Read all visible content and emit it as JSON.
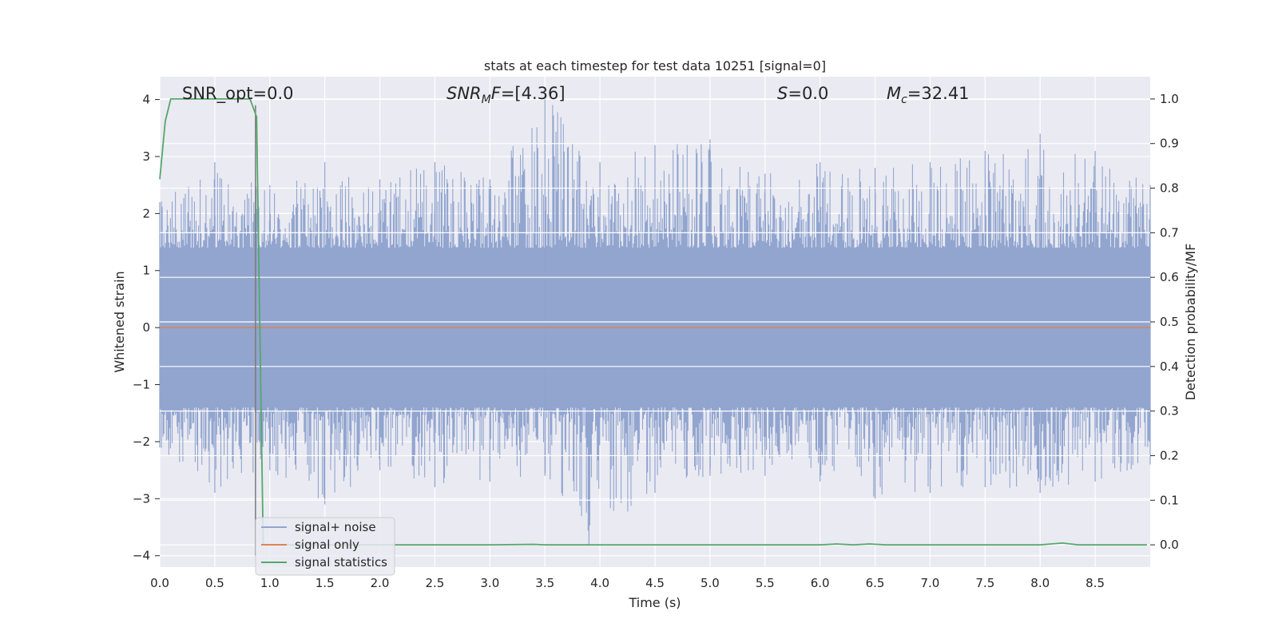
{
  "chart_data": {
    "type": "line",
    "title": "stats at each timestep for test data 10251 [signal=0]",
    "xlabel": "Time (s)",
    "ylabel": "Whitened strain",
    "ylabel_right": "Detection probability/MF",
    "xlim": [
      0.0,
      9.0
    ],
    "ylim": [
      -4.2,
      4.4
    ],
    "ylim_right": [
      -0.05,
      1.05
    ],
    "x_ticks": [
      "0.0",
      "0.5",
      "1.0",
      "1.5",
      "2.0",
      "2.5",
      "3.0",
      "3.5",
      "4.0",
      "4.5",
      "5.0",
      "5.5",
      "6.0",
      "6.5",
      "7.0",
      "7.5",
      "8.0",
      "8.5"
    ],
    "y_ticks": [
      "4",
      "3",
      "2",
      "1",
      "0",
      "−1",
      "−2",
      "−3",
      "−4"
    ],
    "y_ticks_right": [
      "1.0",
      "0.9",
      "0.8",
      "0.7",
      "0.6",
      "0.5",
      "0.4",
      "0.3",
      "0.2",
      "0.1",
      "0.0"
    ],
    "grid": true,
    "legend_placement": "lower-left",
    "annotations": {
      "snr_opt": "SNR_opt=0.0",
      "snr_mf_sym": "SNR",
      "snr_mf_sub": "M",
      "snr_mf_rest": "F=[4.36]",
      "s_sym": "S",
      "s_rest": "=0.0",
      "mc_sym": "M",
      "mc_sub": "c",
      "mc_rest": "=32.41"
    },
    "series": [
      {
        "name": "signal+ noise",
        "color": "#91a5cf",
        "description_type": "noise",
        "envelope_upper": [
          [
            0.0,
            2.2
          ],
          [
            0.5,
            2.9
          ],
          [
            1.0,
            2.5
          ],
          [
            1.5,
            2.9
          ],
          [
            2.0,
            2.6
          ],
          [
            2.5,
            2.9
          ],
          [
            3.0,
            2.6
          ],
          [
            3.5,
            4.1
          ],
          [
            4.0,
            2.9
          ],
          [
            4.5,
            3.2
          ],
          [
            5.0,
            3.3
          ],
          [
            5.5,
            2.7
          ],
          [
            6.0,
            2.9
          ],
          [
            6.5,
            2.8
          ],
          [
            7.0,
            2.9
          ],
          [
            7.5,
            3.1
          ],
          [
            8.0,
            3.4
          ],
          [
            8.5,
            3.1
          ],
          [
            9.0,
            2.5
          ]
        ],
        "envelope_lower": [
          [
            0.0,
            -2.1
          ],
          [
            0.5,
            -2.9
          ],
          [
            1.0,
            -2.5
          ],
          [
            1.5,
            -3.1
          ],
          [
            2.0,
            -2.5
          ],
          [
            2.5,
            -2.8
          ],
          [
            3.0,
            -2.7
          ],
          [
            3.5,
            -2.6
          ],
          [
            3.9,
            -3.8
          ],
          [
            4.5,
            -2.9
          ],
          [
            5.0,
            -2.6
          ],
          [
            5.5,
            -2.6
          ],
          [
            6.0,
            -2.7
          ],
          [
            6.5,
            -3.0
          ],
          [
            7.0,
            -2.9
          ],
          [
            7.5,
            -2.8
          ],
          [
            8.0,
            -2.9
          ],
          [
            8.5,
            -2.7
          ],
          [
            9.0,
            -2.4
          ]
        ]
      },
      {
        "name": "signal only",
        "color": "#dd8452",
        "x": [
          0.0,
          9.0
        ],
        "y": [
          0.0,
          0.0
        ]
      },
      {
        "name": "signal statistics",
        "color": "#55a868",
        "axis": "right",
        "x": [
          0.0,
          0.05,
          0.1,
          0.2,
          0.4,
          0.6,
          0.8,
          0.82,
          0.88,
          0.94,
          1.0,
          2.0,
          3.0,
          3.4,
          3.5,
          4.0,
          5.0,
          6.0,
          6.15,
          6.3,
          6.45,
          6.6,
          7.0,
          8.0,
          8.2,
          8.35,
          8.97
        ],
        "y": [
          0.82,
          0.95,
          1.0,
          1.0,
          1.0,
          1.0,
          1.0,
          1.0,
          0.96,
          0.0,
          0.0,
          0.0,
          0.0,
          0.001,
          0.0,
          0.0,
          0.0,
          0.0,
          0.002,
          0.0,
          0.002,
          0.0,
          0.0,
          0.0,
          0.004,
          0.0,
          0.0
        ]
      }
    ]
  }
}
